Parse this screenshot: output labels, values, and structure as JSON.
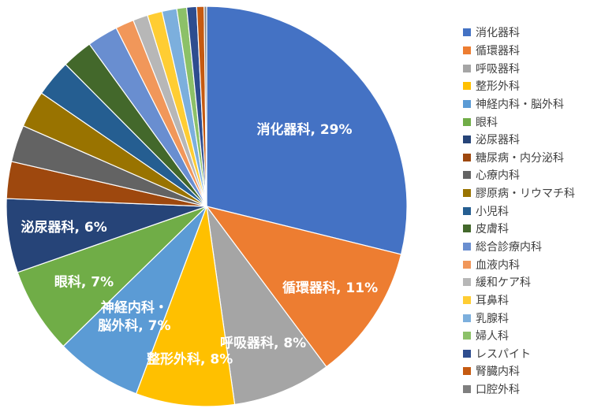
{
  "chart_data": {
    "type": "pie",
    "title": "",
    "legend_position": "right",
    "categories": [
      "消化器科",
      "循環器科",
      "呼吸器科",
      "整形外科",
      "神経内科・脳外科",
      "眼科",
      "泌尿器科",
      "糖尿病・内分泌科",
      "心療内科",
      "膠原病・リウマチ科",
      "小児科",
      "皮膚科",
      "総合診療内科",
      "血液内科",
      "緩和ケア科",
      "耳鼻科",
      "乳腺科",
      "婦人科",
      "レスパイト",
      "腎臓内科",
      "口腔外科"
    ],
    "values": [
      29,
      11,
      8,
      8,
      7,
      7,
      6,
      3,
      3,
      3,
      3,
      2.5,
      2.5,
      1.5,
      1.2,
      1.2,
      1.2,
      0.8,
      0.8,
      0.6,
      0.2
    ],
    "colors": [
      "#4472C4",
      "#ED7D31",
      "#A5A5A5",
      "#FFC000",
      "#5B9BD5",
      "#70AD47",
      "#264478",
      "#9E480E",
      "#636363",
      "#997300",
      "#255E91",
      "#43682B",
      "#698ED0",
      "#F1975A",
      "#B7B7B7",
      "#FFCD33",
      "#7CAFDD",
      "#8CC168",
      "#2E4D8F",
      "#C55A11",
      "#7F7F7F"
    ],
    "data_labels": [
      {
        "index": 0,
        "lines": [
          "消化器科, 29%"
        ]
      },
      {
        "index": 1,
        "lines": [
          "循環器科, 11%"
        ]
      },
      {
        "index": 2,
        "lines": [
          "呼吸器科, 8%"
        ]
      },
      {
        "index": 3,
        "lines": [
          "整形外科, 8%"
        ]
      },
      {
        "index": 4,
        "lines": [
          "神経内科・",
          "脳外科, 7%"
        ]
      },
      {
        "index": 5,
        "lines": [
          "眼科, 7%"
        ]
      },
      {
        "index": 6,
        "lines": [
          "泌尿器科, 6%"
        ]
      }
    ]
  }
}
